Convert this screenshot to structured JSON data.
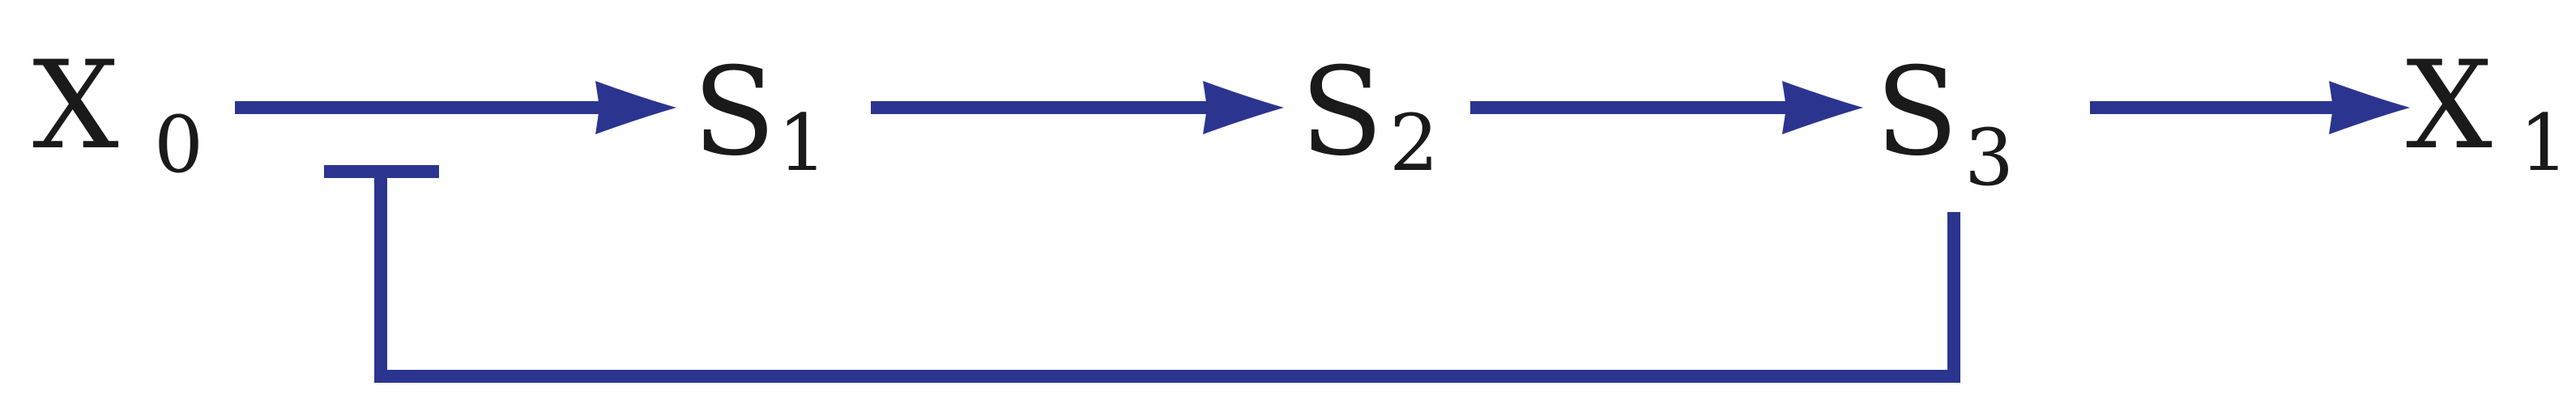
{
  "diagram": {
    "nodes": [
      {
        "id": "X0",
        "symbol": "X",
        "subscript": "0"
      },
      {
        "id": "S1",
        "symbol": "S",
        "subscript": "1"
      },
      {
        "id": "S2",
        "symbol": "S",
        "subscript": "2"
      },
      {
        "id": "S3",
        "symbol": "S",
        "subscript": "3"
      },
      {
        "id": "X1",
        "symbol": "X",
        "subscript": "1"
      }
    ],
    "edges": [
      {
        "from": "X0",
        "to": "S1",
        "type": "activation"
      },
      {
        "from": "S1",
        "to": "S2",
        "type": "activation"
      },
      {
        "from": "S2",
        "to": "S3",
        "type": "activation"
      },
      {
        "from": "S3",
        "to": "X1",
        "type": "activation"
      },
      {
        "from": "S3",
        "to": "X0-S1",
        "type": "inhibition"
      }
    ],
    "colors": {
      "edge": "#2b3590",
      "text": "#1a1a1a"
    }
  }
}
